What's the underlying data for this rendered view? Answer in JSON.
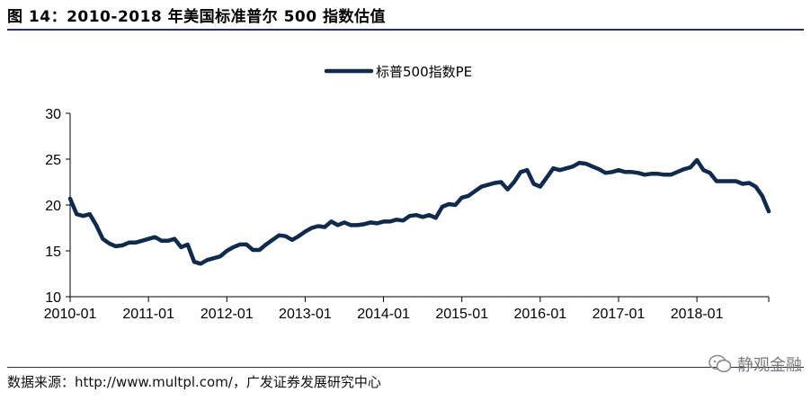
{
  "header": {
    "title": "图 14：2010-2018 年美国标准普尔 500 指数估值"
  },
  "footer": {
    "source": "数据来源：http://www.multpl.com/，广发证券发展研究中心",
    "watermark": "静观金融"
  },
  "colors": {
    "series": "#0f2a4a",
    "rule": "#2b2b6a"
  },
  "chart_data": {
    "type": "line",
    "legend_placement": "top-center",
    "grid": false,
    "x_type": "date",
    "xlim": [
      "2010-01",
      "2018-12"
    ],
    "ylim": [
      10,
      30
    ],
    "yticks": [
      10,
      15,
      20,
      25,
      30
    ],
    "xticks": [
      "2010-01",
      "2011-01",
      "2012-01",
      "2013-01",
      "2014-01",
      "2015-01",
      "2016-01",
      "2017-01",
      "2018-01"
    ],
    "series": [
      {
        "name": "标普500指数PE",
        "x": [
          "2010-01",
          "2010-02",
          "2010-03",
          "2010-04",
          "2010-05",
          "2010-06",
          "2010-07",
          "2010-08",
          "2010-09",
          "2010-10",
          "2010-11",
          "2010-12",
          "2011-01",
          "2011-02",
          "2011-03",
          "2011-04",
          "2011-05",
          "2011-06",
          "2011-07",
          "2011-08",
          "2011-09",
          "2011-10",
          "2011-11",
          "2011-12",
          "2012-01",
          "2012-02",
          "2012-03",
          "2012-04",
          "2012-05",
          "2012-06",
          "2012-07",
          "2012-08",
          "2012-09",
          "2012-10",
          "2012-11",
          "2012-12",
          "2013-01",
          "2013-02",
          "2013-03",
          "2013-04",
          "2013-05",
          "2013-06",
          "2013-07",
          "2013-08",
          "2013-09",
          "2013-10",
          "2013-11",
          "2013-12",
          "2014-01",
          "2014-02",
          "2014-03",
          "2014-04",
          "2014-05",
          "2014-06",
          "2014-07",
          "2014-08",
          "2014-09",
          "2014-10",
          "2014-11",
          "2014-12",
          "2015-01",
          "2015-02",
          "2015-03",
          "2015-04",
          "2015-05",
          "2015-06",
          "2015-07",
          "2015-08",
          "2015-09",
          "2015-10",
          "2015-11",
          "2015-12",
          "2016-01",
          "2016-02",
          "2016-03",
          "2016-04",
          "2016-05",
          "2016-06",
          "2016-07",
          "2016-08",
          "2016-09",
          "2016-10",
          "2016-11",
          "2016-12",
          "2017-01",
          "2017-02",
          "2017-03",
          "2017-04",
          "2017-05",
          "2017-06",
          "2017-07",
          "2017-08",
          "2017-09",
          "2017-10",
          "2017-11",
          "2017-12",
          "2018-01",
          "2018-02",
          "2018-03",
          "2018-04",
          "2018-05",
          "2018-06",
          "2018-07",
          "2018-08",
          "2018-09",
          "2018-10",
          "2018-11",
          "2018-12"
        ],
        "y": [
          20.7,
          19.0,
          18.8,
          19.0,
          17.8,
          16.3,
          15.8,
          15.5,
          15.6,
          15.9,
          15.9,
          16.1,
          16.3,
          16.5,
          16.1,
          16.1,
          16.3,
          15.4,
          15.7,
          13.8,
          13.6,
          14.0,
          14.2,
          14.4,
          15.0,
          15.4,
          15.7,
          15.7,
          15.1,
          15.1,
          15.7,
          16.2,
          16.7,
          16.6,
          16.2,
          16.6,
          17.1,
          17.5,
          17.7,
          17.6,
          18.2,
          17.8,
          18.1,
          17.8,
          17.8,
          17.9,
          18.1,
          18.0,
          18.2,
          18.2,
          18.4,
          18.3,
          18.8,
          18.9,
          18.7,
          18.9,
          18.6,
          19.8,
          20.1,
          20.0,
          20.8,
          21.0,
          21.5,
          22.0,
          22.2,
          22.4,
          22.5,
          21.7,
          22.5,
          23.6,
          23.8,
          22.3,
          22.0,
          23.0,
          24.0,
          23.8,
          24.0,
          24.2,
          24.6,
          24.5,
          24.2,
          23.9,
          23.5,
          23.6,
          23.8,
          23.6,
          23.6,
          23.5,
          23.3,
          23.4,
          23.4,
          23.3,
          23.3,
          23.6,
          23.9,
          24.1,
          24.9,
          23.8,
          23.5,
          22.6,
          22.6,
          22.6,
          22.6,
          22.3,
          22.4,
          22.0,
          21.0,
          19.3
        ]
      }
    ]
  }
}
